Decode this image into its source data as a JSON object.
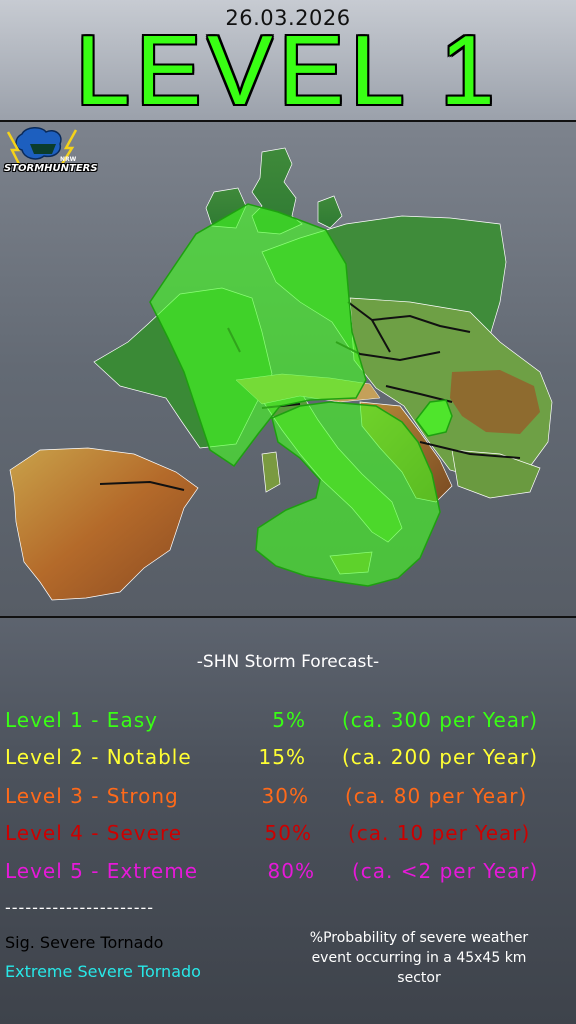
{
  "header": {
    "date": "26.03.2026",
    "level_title": "LEVEL 1"
  },
  "logo": {
    "text": "STORMHUNTERS",
    "small_text": "NRW"
  },
  "map": {
    "region": "Europe",
    "forecast_level": 1,
    "forecast_color": "#44ff22"
  },
  "legend": {
    "title": "-SHN Storm Forecast-",
    "levels": [
      {
        "name": "Level 1 - Easy",
        "pct": "5%",
        "freq": "(ca. 300 per Year)",
        "color": "#39ff14"
      },
      {
        "name": "Level 2 - Notable",
        "pct": "15%",
        "freq": "(ca. 200 per Year)",
        "color": "#ffff33"
      },
      {
        "name": "Level 3 - Strong",
        "pct": "30%",
        "freq": "(ca. 80 per Year)",
        "color": "#ff6a1a"
      },
      {
        "name": "Level 4 - Severe",
        "pct": "50%",
        "freq": "(ca. 10 per Year)",
        "color": "#cc0000"
      },
      {
        "name": "Level 5 - Extreme",
        "pct": "80%",
        "freq": "(ca.  <2 per Year)",
        "color": "#e619d9"
      }
    ],
    "divider": "----------------------",
    "sig_tornado": "Sig. Severe Tornado",
    "extreme_tornado": "Extreme Severe Tornado",
    "note": "%Probability of severe weather event occurring in a 45x45 km sector"
  }
}
